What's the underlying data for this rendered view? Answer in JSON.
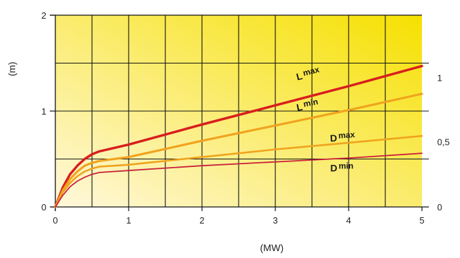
{
  "chart_data": {
    "type": "line",
    "xlabel": "(MW)",
    "ylabel": "(m)",
    "xlim": [
      0,
      5
    ],
    "ylim": [
      0,
      2
    ],
    "x_ticks": [
      "0",
      "1",
      "2",
      "3",
      "4",
      "5"
    ],
    "y_ticks_left": [
      "0",
      "1",
      "2"
    ],
    "y_ticks_right": [
      "0",
      "0,5",
      "1"
    ],
    "grid": true,
    "background_gradient": [
      "#fff8dc",
      "#f6e000"
    ],
    "series": [
      {
        "name": "L max",
        "color": "#d81e1e",
        "x": [
          0,
          0.1,
          0.2,
          0.3,
          0.4,
          0.5,
          0.6,
          1,
          2,
          3,
          4,
          5
        ],
        "y": [
          0,
          0.2,
          0.34,
          0.43,
          0.5,
          0.55,
          0.58,
          0.65,
          0.86,
          1.06,
          1.26,
          1.47
        ]
      },
      {
        "name": "L min",
        "color": "#f0a31e",
        "x": [
          0,
          0.1,
          0.2,
          0.3,
          0.4,
          0.5,
          0.6,
          1,
          2,
          3,
          4,
          5
        ],
        "y": [
          0,
          0.17,
          0.29,
          0.37,
          0.43,
          0.46,
          0.48,
          0.52,
          0.69,
          0.85,
          1.01,
          1.18
        ]
      },
      {
        "name": "D max",
        "color": "#f0a31e",
        "x": [
          0,
          0.1,
          0.2,
          0.3,
          0.4,
          0.5,
          0.6,
          1,
          2,
          3,
          4,
          5
        ],
        "y": [
          0,
          0.15,
          0.25,
          0.32,
          0.37,
          0.4,
          0.42,
          0.44,
          0.52,
          0.6,
          0.67,
          0.74
        ]
      },
      {
        "name": "D min",
        "color": "#c8203c",
        "x": [
          0,
          0.1,
          0.2,
          0.3,
          0.4,
          0.5,
          0.6,
          1,
          2,
          3,
          4,
          5
        ],
        "y": [
          0,
          0.12,
          0.21,
          0.27,
          0.31,
          0.34,
          0.36,
          0.38,
          0.43,
          0.47,
          0.51,
          0.56
        ]
      }
    ],
    "labels": [
      {
        "main": "L",
        "sub": "max",
        "x": 3.3,
        "y": 1.32,
        "rot": -14
      },
      {
        "main": "L",
        "sub": "min",
        "x": 3.3,
        "y": 1.0,
        "rot": -11
      },
      {
        "main": "D",
        "sub": "max",
        "x": 3.75,
        "y": 0.68,
        "rot": -4
      },
      {
        "main": "D",
        "sub": "min",
        "x": 3.75,
        "y": 0.37,
        "rot": 0
      }
    ]
  }
}
